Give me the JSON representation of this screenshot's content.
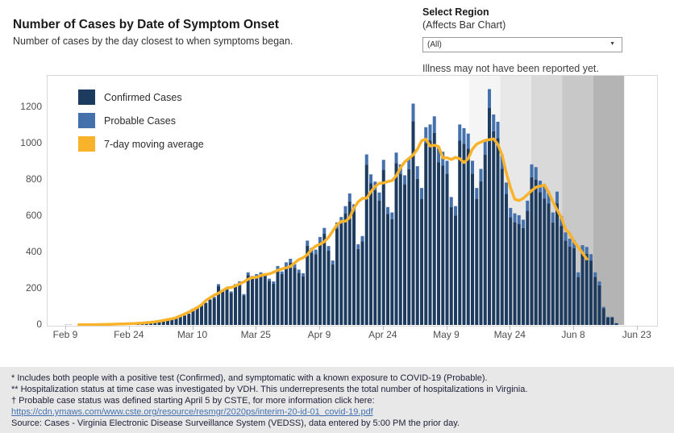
{
  "header": {
    "title": "Number of Cases by Date of Symptom Onset",
    "subtitle": "Number of cases by the day closest to when symptoms began."
  },
  "region_control": {
    "label": "Select Region",
    "sublabel": "(Affects Bar Chart)",
    "selected": "(All)",
    "caret_icon": "▼"
  },
  "chart_data": {
    "type": "bar",
    "stacked": true,
    "title": "Number of Cases by Date of Symptom Onset",
    "x_axis": {
      "tick_labels": [
        "Feb 9",
        "Feb 24",
        "Mar 10",
        "Mar 25",
        "Apr 9",
        "Apr 24",
        "May 9",
        "May 24",
        "Jun 8",
        "Jun 23"
      ],
      "tick_day_indices": [
        0,
        15,
        30,
        45,
        60,
        75,
        90,
        105,
        120,
        135
      ],
      "days_span_note": "one bar per day, Feb 9 through Jun 18"
    },
    "y_axis": {
      "ticks": [
        0,
        200,
        400,
        600,
        800,
        1000,
        1200
      ],
      "label": ""
    },
    "series": [
      {
        "name": "Confirmed Cases",
        "color": "#1d3a5f",
        "type": "bar",
        "values": [
          1,
          1,
          0,
          1,
          1,
          2,
          1,
          2,
          2,
          3,
          3,
          4,
          5,
          5,
          6,
          7,
          8,
          9,
          10,
          12,
          14,
          16,
          20,
          22,
          28,
          34,
          40,
          45,
          52,
          62,
          90,
          100,
          110,
          122,
          140,
          147,
          213,
          186,
          196,
          177,
          214,
          228,
          162,
          275,
          257,
          266,
          275,
          271,
          243,
          228,
          307,
          280,
          325,
          343,
          315,
          287,
          268,
          437,
          399,
          390,
          455,
          502,
          409,
          334,
          531,
          559,
          615,
          681,
          625,
          418,
          460,
          883,
          780,
          742,
          686,
          855,
          611,
          583,
          892,
          831,
          775,
          859,
          1122,
          805,
          695,
          1003,
          1017,
          1058,
          897,
          879,
          833,
          649,
          603,
          1017,
          998,
          971,
          833,
          695,
          791,
          938,
          1196,
          1067,
          1030,
          860,
          722,
          593,
          566,
          557,
          534,
          630,
          814,
          800,
          731,
          696,
          669,
          564,
          669,
          546,
          464,
          432,
          423,
          264,
          400,
          391,
          355,
          264,
          218,
          91,
          41,
          41,
          9
        ]
      },
      {
        "name": "Probable Cases",
        "color": "#4471ab",
        "type": "bar",
        "values": [
          0,
          0,
          0,
          0,
          0,
          0,
          0,
          0,
          0,
          0,
          0,
          0,
          0,
          0,
          0,
          0,
          0,
          0,
          0,
          0,
          0,
          0,
          0,
          0,
          0,
          0,
          0,
          0,
          0,
          0,
          0,
          0,
          0,
          0,
          0,
          8,
          12,
          9,
          9,
          8,
          11,
          12,
          8,
          15,
          13,
          14,
          15,
          14,
          12,
          12,
          18,
          15,
          20,
          22,
          20,
          18,
          17,
          28,
          26,
          25,
          30,
          33,
          26,
          21,
          34,
          36,
          40,
          44,
          40,
          27,
          30,
          57,
          50,
          48,
          44,
          55,
          39,
          37,
          58,
          54,
          50,
          56,
          98,
          70,
          60,
          87,
          88,
          92,
          78,
          76,
          72,
          56,
          52,
          88,
          87,
          84,
          72,
          60,
          69,
          82,
          104,
          93,
          90,
          75,
          63,
          52,
          49,
          48,
          46,
          55,
          71,
          70,
          64,
          69,
          66,
          56,
          66,
          54,
          46,
          43,
          42,
          26,
          40,
          39,
          35,
          26,
          22,
          9,
          4,
          4,
          1
        ]
      },
      {
        "name": "7-day moving average",
        "color": "#f8b32b",
        "type": "line",
        "derivation": "centered 7-day mean of Confirmed + Probable"
      }
    ],
    "unreported_shading": {
      "note": "Illness may not have been reported yet.",
      "colors": [
        "#f5f5f5",
        "#e8e8e8",
        "#d9d9d9",
        "#c8c8c8",
        "#b4b4b4"
      ]
    }
  },
  "footer": {
    "lines": [
      "* Includes both people with a positive test (Confirmed), and symptomatic with a known exposure to COVID-19 (Probable).",
      "** Hospitalization status at time case was investigated by VDH. This underrepresents the total number of hospitalizations in Virginia.",
      "† Probable case status was defined starting April 5 by CSTE, for more information click here:"
    ],
    "link": "https://cdn.ymaws.com/www.cste.org/resource/resmgr/2020ps/interim-20-id-01_covid-19.pdf",
    "source": "Source:  Cases - Virginia Electronic Disease Surveillance System (VEDSS), data entered by 5:00 PM the prior day."
  }
}
